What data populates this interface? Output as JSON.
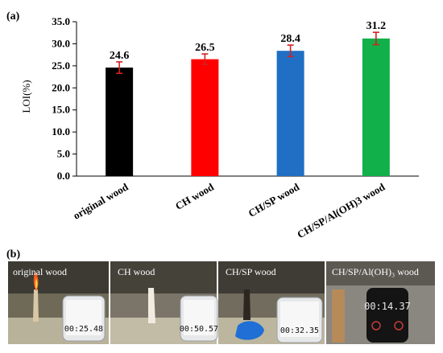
{
  "panel_a_label": "(a)",
  "panel_b_label": "(b)",
  "chart_data": {
    "type": "bar",
    "ylabel": "LOI(%)",
    "xlabel": "",
    "ylim": [
      0,
      35
    ],
    "yticks": [
      "0.0",
      "5.0",
      "10.0",
      "15.0",
      "20.0",
      "25.0",
      "30.0",
      "35.0"
    ],
    "categories": [
      "original wood",
      "CH wood",
      "CH/SP wood",
      "CH/SP/Al(OH)3 wood"
    ],
    "values": [
      24.6,
      26.5,
      28.4,
      31.2
    ],
    "value_labels": [
      "24.6",
      "26.5",
      "28.4",
      "31.2"
    ],
    "error": [
      1.3,
      1.2,
      1.3,
      1.4
    ],
    "colors": [
      "#000000",
      "#ff0000",
      "#1f6fc4",
      "#12b04a"
    ],
    "error_color": "#d42020",
    "grid": false
  },
  "photos": [
    {
      "label": "original wood",
      "timer": "00:25.48"
    },
    {
      "label": "CH wood",
      "timer": "00:50.57"
    },
    {
      "label": "CH/SP wood",
      "timer": "00:32.35"
    },
    {
      "label": "CH/SP/Al(OH)₃ wood",
      "timer": "00:14.37"
    }
  ]
}
